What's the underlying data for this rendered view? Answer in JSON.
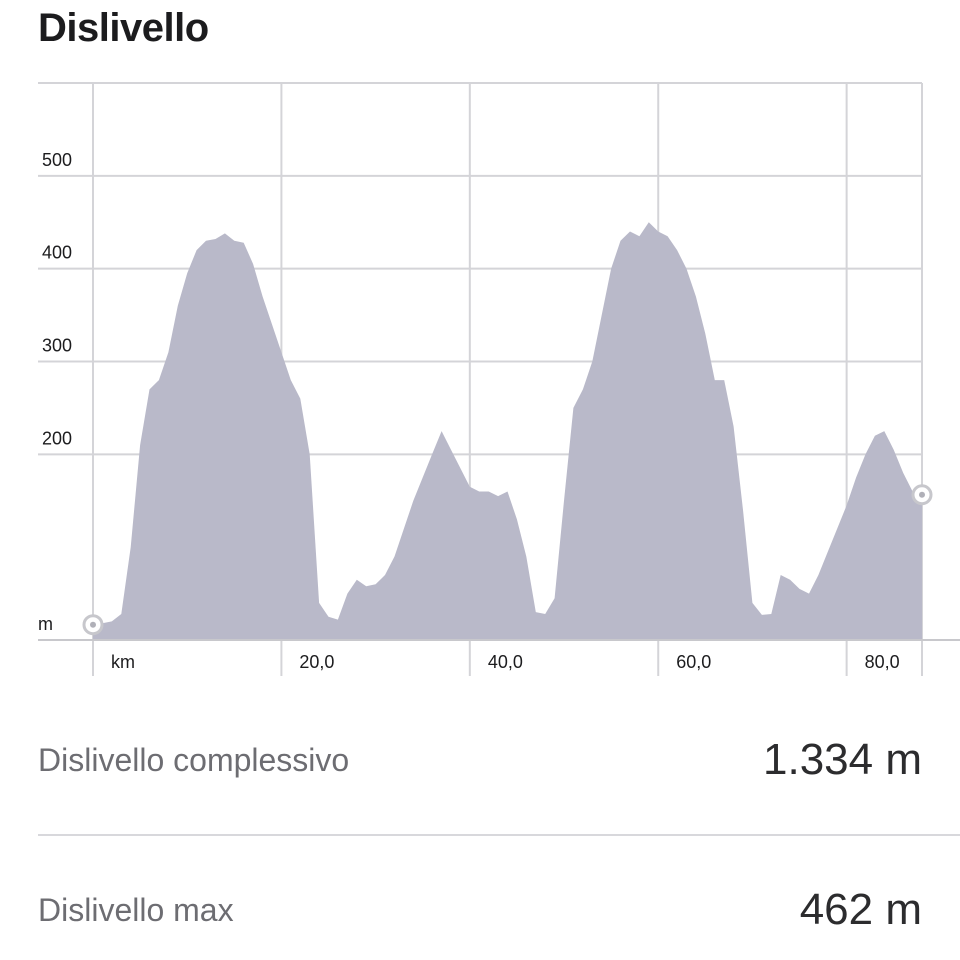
{
  "header": {
    "title": "Dislivello"
  },
  "chart_data": {
    "type": "area",
    "x_unit_label": "km",
    "y_unit_label": "m",
    "xlim": [
      0,
      88
    ],
    "ylim": [
      0,
      600
    ],
    "x_ticks": [
      {
        "value": 20,
        "label": "20,0"
      },
      {
        "value": 40,
        "label": "40,0"
      },
      {
        "value": 60,
        "label": "60,0"
      },
      {
        "value": 80,
        "label": "80,0"
      }
    ],
    "y_ticks": [
      {
        "value": 200,
        "label": "200"
      },
      {
        "value": 300,
        "label": "300"
      },
      {
        "value": 400,
        "label": "400"
      },
      {
        "value": 500,
        "label": "500"
      }
    ],
    "grid": true,
    "fill_color": "#b9b9c9",
    "x": [
      0,
      1,
      2,
      3,
      4,
      5,
      6,
      7,
      8,
      9,
      10,
      11,
      12,
      13,
      14,
      15,
      16,
      17,
      18,
      19,
      20,
      21,
      22,
      23,
      24,
      25,
      26,
      27,
      28,
      29,
      30,
      31,
      32,
      33,
      34,
      35,
      36,
      37,
      38,
      39,
      40,
      41,
      42,
      43,
      44,
      45,
      46,
      47,
      48,
      49,
      50,
      51,
      52,
      53,
      54,
      55,
      56,
      57,
      58,
      59,
      60,
      61,
      62,
      63,
      64,
      65,
      66,
      67,
      68,
      69,
      70,
      71,
      72,
      73,
      74,
      75,
      76,
      77,
      78,
      79,
      80,
      81,
      82,
      83,
      84,
      85,
      86,
      87,
      88
    ],
    "y": [
      10,
      18,
      20,
      28,
      100,
      210,
      270,
      280,
      310,
      360,
      395,
      420,
      430,
      432,
      438,
      430,
      428,
      405,
      370,
      340,
      310,
      280,
      260,
      200,
      40,
      25,
      22,
      50,
      65,
      58,
      60,
      70,
      90,
      120,
      150,
      175,
      200,
      225,
      205,
      185,
      165,
      160,
      160,
      155,
      160,
      130,
      90,
      30,
      28,
      45,
      150,
      250,
      270,
      300,
      350,
      400,
      430,
      440,
      435,
      450,
      440,
      435,
      420,
      400,
      370,
      330,
      280,
      280,
      230,
      140,
      40,
      27,
      28,
      70,
      65,
      55,
      50,
      70,
      95,
      120,
      145,
      175,
      200,
      220,
      225,
      205,
      180,
      160,
      150
    ]
  },
  "stats": [
    {
      "label": "Dislivello complessivo",
      "value": "1.334 m"
    },
    {
      "label": "Dislivello max",
      "value": "462 m"
    }
  ]
}
